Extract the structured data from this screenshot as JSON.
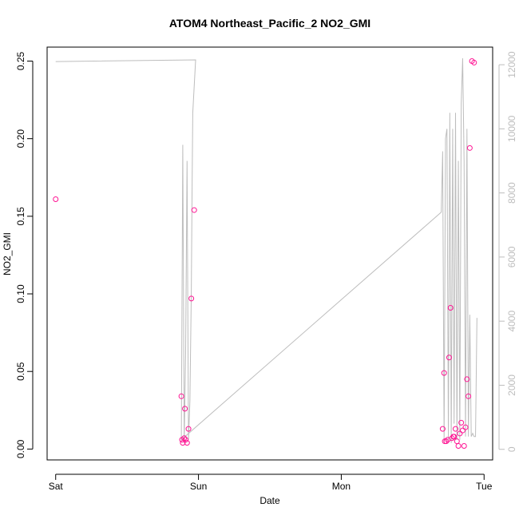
{
  "chart_data": {
    "type": "scatter",
    "title": "ATOM4 Northeast_Pacific_2 NO2_GMI",
    "xlabel": "Date",
    "ylabel": "NO2_GMI",
    "x_ticks": [
      "Sat",
      "Sun",
      "Mon",
      "Tue"
    ],
    "x_range_days": [
      -0.06,
      3.06
    ],
    "y_left": {
      "range": [
        -0.007,
        0.259
      ],
      "ticks": [
        0.0,
        0.05,
        0.1,
        0.15,
        0.2,
        0.25
      ],
      "tick_labels": [
        "0.00",
        "0.05",
        "0.10",
        "0.15",
        "0.20",
        "0.25"
      ]
    },
    "y_right": {
      "range": [
        -330,
        12550
      ],
      "ticks": [
        0,
        2000,
        4000,
        6000,
        8000,
        10000,
        12000
      ],
      "tick_labels": [
        "0",
        "2000",
        "4000",
        "6000",
        "8000",
        "10000",
        "12000"
      ]
    },
    "grid": false,
    "legend": "none",
    "colors": {
      "points": "#ff1493",
      "altitude_line": "#bdbdbd",
      "axes": "#000000"
    },
    "series": [
      {
        "axis": "left",
        "style": "points",
        "x_days": [
          0.0,
          0.88,
          0.885,
          0.89,
          0.9,
          0.905,
          0.91,
          0.92,
          0.93,
          0.95,
          0.97,
          2.71,
          2.72,
          2.725,
          2.735,
          2.745,
          2.755,
          2.765,
          2.775,
          2.785,
          2.79,
          2.8,
          2.81,
          2.82,
          2.83,
          2.84,
          2.85,
          2.86,
          2.87,
          2.88,
          2.89,
          2.9,
          2.915,
          2.93
        ],
        "y": [
          0.161,
          0.034,
          0.006,
          0.004,
          0.007,
          0.026,
          0.006,
          0.004,
          0.013,
          0.097,
          0.154,
          0.013,
          0.049,
          0.005,
          0.005,
          0.006,
          0.059,
          0.091,
          0.007,
          0.008,
          0.008,
          0.013,
          0.005,
          0.002,
          0.01,
          0.017,
          0.012,
          0.002,
          0.014,
          0.045,
          0.034,
          0.194,
          0.25,
          0.249
        ]
      },
      {
        "axis": "right",
        "style": "line",
        "x_days": [
          0.0,
          0.98,
          0.96,
          0.955,
          0.95,
          0.94,
          0.93,
          0.92,
          0.91,
          0.9,
          0.89,
          0.88,
          2.7,
          2.71,
          2.72,
          2.73,
          2.74,
          2.75,
          2.76,
          2.77,
          2.78,
          2.79,
          2.8,
          2.81,
          2.82,
          2.83,
          2.84,
          2.85,
          2.86,
          2.87,
          2.88,
          2.89,
          2.9,
          2.91,
          2.92,
          2.93,
          2.94,
          2.95
        ],
        "y": [
          12100,
          12150,
          10500,
          8000,
          5000,
          1500,
          300,
          9000,
          3000,
          200,
          9500,
          300,
          7400,
          9300,
          200,
          9700,
          10000,
          300,
          10500,
          200,
          10000,
          800,
          10500,
          300,
          9000,
          300,
          10800,
          12200,
          9000,
          400,
          10000,
          400,
          4200,
          400,
          500,
          400,
          400,
          4100
        ]
      }
    ]
  }
}
